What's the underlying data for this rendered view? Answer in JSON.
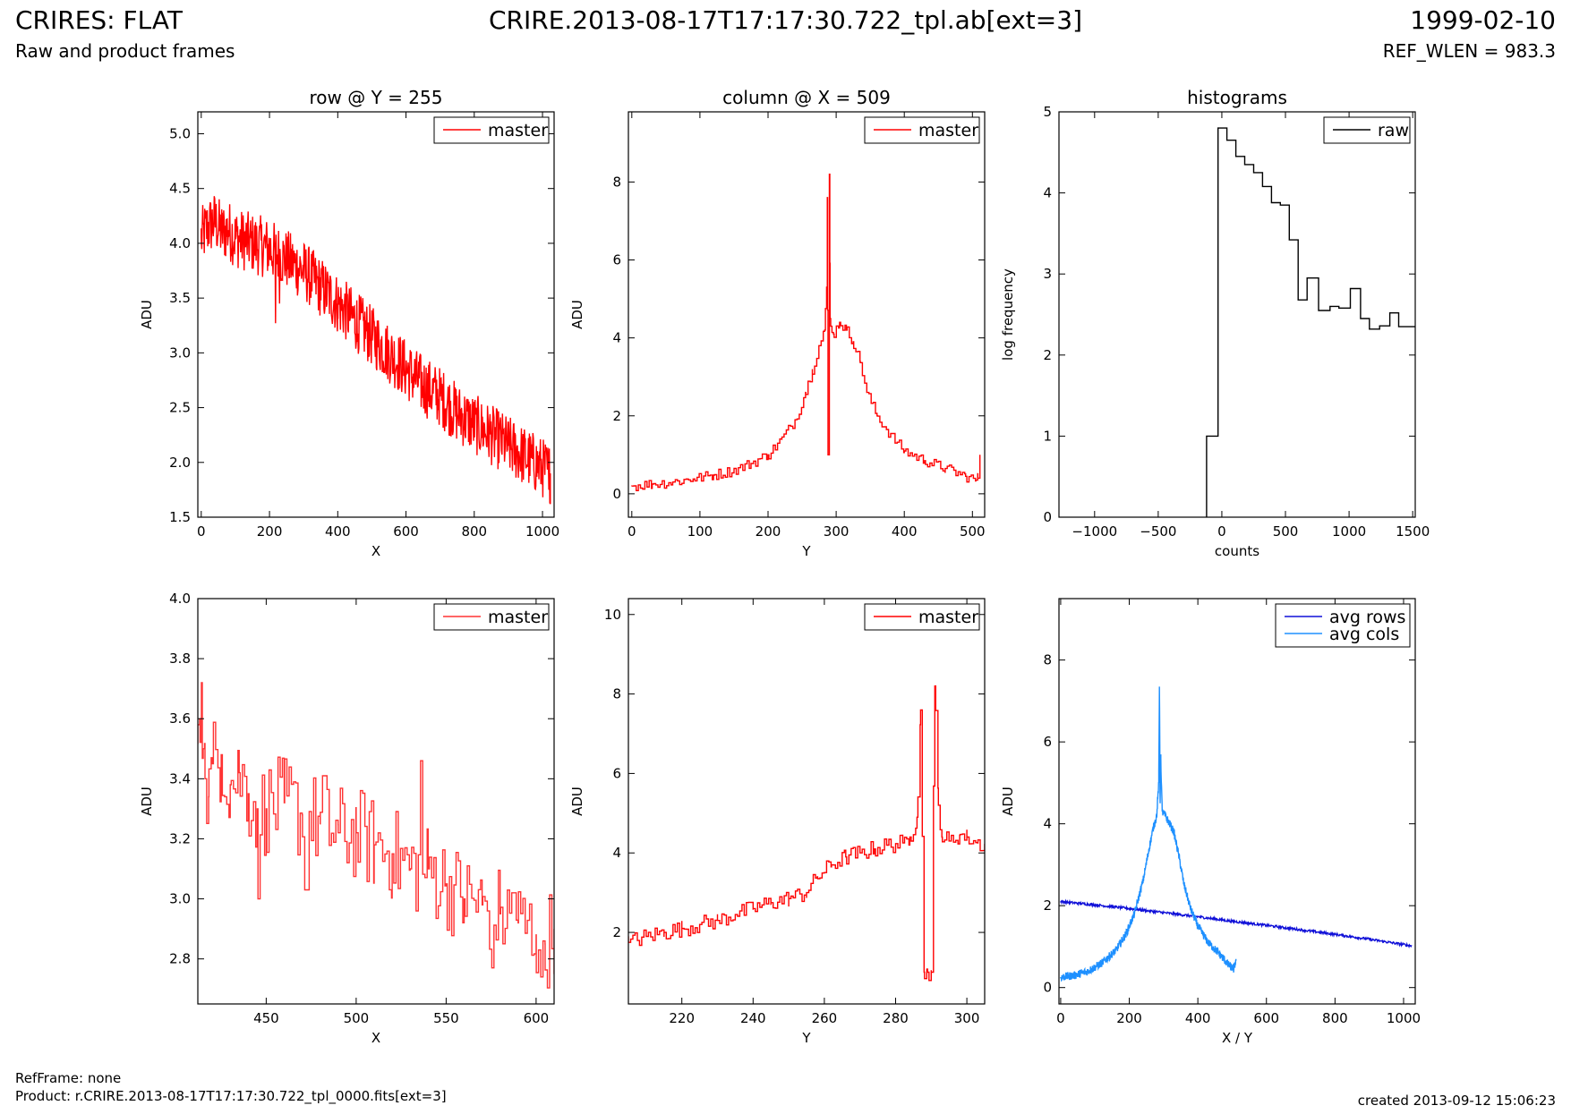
{
  "header": {
    "title_left": "CRIRES: FLAT",
    "subtitle_left": "Raw and product frames",
    "title_center": "CRIRE.2013-08-17T17:17:30.722_tpl.ab[ext=3]",
    "title_right": "1999-02-10",
    "subtitle_right": "REF_WLEN = 983.3"
  },
  "footer": {
    "ref_frame": "RefFrame: none",
    "product": "Product: r.CRIRE.2013-08-17T17:17:30.722_tpl_0000.fits[ext=3]",
    "created": "created 2013-09-12 15:06:23"
  },
  "colors": {
    "red": "#ff0000",
    "light_red": "#ff3333",
    "black": "#000000",
    "blue": "#1010d8",
    "light_blue": "#1e90ff"
  },
  "chart_data": [
    {
      "type": "line",
      "title": "row @ Y = 255",
      "xlabel": "X",
      "ylabel": "ADU",
      "xlim": [
        -10,
        1034
      ],
      "ylim": [
        1.5,
        5.2
      ],
      "xticks": [
        0,
        200,
        400,
        600,
        800,
        1000
      ],
      "yticks": [
        1.5,
        2.0,
        2.5,
        3.0,
        3.5,
        4.0,
        4.5,
        5.0
      ],
      "yformat": 1,
      "legend": "top-right",
      "series": [
        {
          "name": "master",
          "color": "#ff0000",
          "step": false,
          "x": [
            0,
            20,
            40,
            60,
            80,
            100,
            150,
            200,
            250,
            300,
            350,
            400,
            450,
            500,
            550,
            600,
            650,
            700,
            750,
            800,
            850,
            900,
            950,
            1000,
            1023
          ],
          "y": [
            4.05,
            4.15,
            4.2,
            4.1,
            4.12,
            4.05,
            4.0,
            3.95,
            3.85,
            3.75,
            3.6,
            3.45,
            3.3,
            3.15,
            3.0,
            2.85,
            2.7,
            2.6,
            2.45,
            2.35,
            2.25,
            2.15,
            2.05,
            1.95,
            1.9
          ],
          "noise": 0.28,
          "glitches": [
            [
              218,
              3.27
            ],
            [
              230,
              3.45
            ],
            [
              457,
              3.1
            ],
            [
              805,
              2.5
            ],
            [
              1019,
              1.75
            ]
          ]
        }
      ]
    },
    {
      "type": "line",
      "title": "column @ X = 509",
      "xlabel": "Y",
      "ylabel": "ADU",
      "xlim": [
        -5,
        518
      ],
      "ylim": [
        -0.6,
        9.8
      ],
      "xticks": [
        0,
        100,
        200,
        300,
        400,
        500
      ],
      "yticks": [
        0,
        2,
        4,
        6,
        8
      ],
      "yformat": 0,
      "legend": "top-right",
      "series": [
        {
          "name": "master",
          "color": "#ff0000",
          "step": true,
          "x": [
            0,
            30,
            60,
            90,
            120,
            150,
            175,
            200,
            220,
            240,
            255,
            265,
            275,
            283,
            286,
            287,
            288,
            289,
            290,
            291,
            292,
            296,
            305,
            315,
            325,
            335,
            345,
            360,
            380,
            400,
            430,
            460,
            490,
            505,
            508,
            511
          ],
          "y": [
            0.2,
            0.25,
            0.3,
            0.38,
            0.48,
            0.6,
            0.78,
            1.0,
            1.4,
            1.9,
            2.6,
            3.2,
            3.8,
            4.2,
            5.3,
            7.6,
            1.0,
            1.0,
            8.2,
            4.5,
            4.3,
            4.1,
            4.4,
            4.2,
            3.9,
            3.4,
            2.6,
            2.0,
            1.5,
            1.1,
            0.85,
            0.65,
            0.45,
            0.35,
            0.4,
            1.0
          ],
          "noise": 0.14,
          "glitches": []
        }
      ]
    },
    {
      "type": "line",
      "title": "histograms",
      "xlabel": "counts",
      "ylabel": "log frequency",
      "xlim": [
        -1280,
        1520
      ],
      "ylim": [
        0,
        5
      ],
      "xticks": [
        -1000,
        -500,
        0,
        500,
        1000,
        1500
      ],
      "yticks": [
        0,
        1,
        2,
        3,
        4,
        5
      ],
      "yformat": 0,
      "legend": "top-right",
      "series": [
        {
          "name": "raw",
          "color": "#000000",
          "step": true,
          "x": [
            -120,
            -120,
            -30,
            -30,
            40,
            40,
            110,
            110,
            180,
            180,
            250,
            250,
            320,
            320,
            390,
            390,
            460,
            460,
            530,
            530,
            600,
            600,
            670,
            670,
            760,
            760,
            850,
            850,
            920,
            920,
            1010,
            1010,
            1090,
            1090,
            1160,
            1160,
            1240,
            1240,
            1320,
            1320,
            1390,
            1390,
            1520
          ],
          "y": [
            0,
            1.0,
            1.0,
            4.8,
            4.8,
            4.65,
            4.65,
            4.45,
            4.45,
            4.35,
            4.35,
            4.25,
            4.25,
            4.08,
            4.08,
            3.88,
            3.88,
            3.85,
            3.85,
            3.42,
            3.42,
            2.68,
            2.68,
            2.95,
            2.95,
            2.55,
            2.55,
            2.6,
            2.6,
            2.58,
            2.58,
            2.82,
            2.82,
            2.45,
            2.45,
            2.32,
            2.32,
            2.36,
            2.36,
            2.52,
            2.52,
            2.35,
            2.35
          ],
          "noise": 0,
          "glitches": []
        }
      ]
    },
    {
      "type": "line",
      "title": "",
      "xlabel": "X",
      "ylabel": "ADU",
      "xlim": [
        412,
        610
      ],
      "ylim": [
        2.65,
        4.0
      ],
      "xticks": [
        450,
        500,
        550,
        600
      ],
      "yticks": [
        2.8,
        3.0,
        3.2,
        3.4,
        3.6,
        3.8,
        4.0
      ],
      "yformat": 1,
      "legend": "top-right",
      "series": [
        {
          "name": "master",
          "color": "#ff3333",
          "step": true,
          "x": [
            412,
            413,
            414,
            415,
            416,
            418,
            420,
            425,
            430,
            435,
            440,
            445,
            450,
            460,
            470,
            480,
            490,
            500,
            510,
            520,
            530,
            540,
            550,
            560,
            570,
            580,
            590,
            600,
            605,
            610
          ],
          "y": [
            3.58,
            3.6,
            3.72,
            3.5,
            3.4,
            3.34,
            3.45,
            3.48,
            3.38,
            3.42,
            3.35,
            3.3,
            3.3,
            3.32,
            3.28,
            3.25,
            3.22,
            3.22,
            3.18,
            3.15,
            3.1,
            3.1,
            3.05,
            3.0,
            2.98,
            2.95,
            2.92,
            2.88,
            2.85,
            2.9
          ],
          "noise": 0.16,
          "glitches": [
            [
              445,
              3.0
            ],
            [
              472,
              3.03
            ],
            [
              482,
              3.41
            ],
            [
              536,
              3.46
            ],
            [
              575,
              2.77
            ],
            [
              587,
              3.02
            ],
            [
              603,
              2.74
            ]
          ]
        }
      ]
    },
    {
      "type": "line",
      "title": "",
      "xlabel": "Y",
      "ylabel": "ADU",
      "xlim": [
        205,
        305
      ],
      "ylim": [
        0.2,
        10.4
      ],
      "xticks": [
        220,
        240,
        260,
        280,
        300
      ],
      "yticks": [
        2,
        4,
        6,
        8,
        10
      ],
      "yformat": 0,
      "legend": "top-right",
      "series": [
        {
          "name": "master",
          "color": "#ff0000",
          "step": true,
          "x": [
            205,
            210,
            215,
            220,
            225,
            230,
            235,
            240,
            245,
            250,
            255,
            258,
            262,
            266,
            270,
            274,
            278,
            282,
            284,
            286,
            287,
            288,
            289,
            290,
            291,
            292,
            293,
            295,
            298,
            300,
            303,
            305
          ],
          "y": [
            1.75,
            1.9,
            2.0,
            2.1,
            2.2,
            2.3,
            2.45,
            2.6,
            2.75,
            2.85,
            3.0,
            3.4,
            3.7,
            3.9,
            4.0,
            4.1,
            4.2,
            4.25,
            4.4,
            4.9,
            7.6,
            1.0,
            1.0,
            1.0,
            8.2,
            5.2,
            4.4,
            4.3,
            4.45,
            4.4,
            4.25,
            4.2
          ],
          "noise": 0.22,
          "glitches": []
        }
      ]
    },
    {
      "type": "line",
      "title": "",
      "xlabel": "X / Y",
      "ylabel": "ADU",
      "xlim": [
        -5,
        1034
      ],
      "ylim": [
        -0.4,
        9.5
      ],
      "xticks": [
        0,
        200,
        400,
        600,
        800,
        1000
      ],
      "yticks": [
        0,
        2,
        4,
        6,
        8
      ],
      "yformat": 0,
      "legend": "top-right",
      "series": [
        {
          "name": "avg rows",
          "color": "#1010d8",
          "step": false,
          "x": [
            0,
            100,
            200,
            300,
            400,
            500,
            600,
            700,
            800,
            900,
            1023
          ],
          "y": [
            2.1,
            2.02,
            1.93,
            1.83,
            1.73,
            1.62,
            1.52,
            1.41,
            1.3,
            1.18,
            1.02
          ],
          "noise": 0.03,
          "glitches": []
        },
        {
          "name": "avg cols",
          "color": "#1e90ff",
          "step": false,
          "x": [
            0,
            40,
            80,
            120,
            160,
            190,
            215,
            240,
            258,
            270,
            280,
            286,
            288,
            290,
            292,
            296,
            305,
            318,
            330,
            345,
            360,
            380,
            400,
            430,
            460,
            490,
            505,
            508,
            511
          ],
          "y": [
            0.25,
            0.3,
            0.4,
            0.6,
            0.9,
            1.3,
            1.8,
            2.6,
            3.4,
            3.9,
            4.2,
            5.0,
            7.35,
            4.5,
            5.6,
            4.3,
            4.2,
            4.0,
            3.8,
            3.2,
            2.5,
            1.9,
            1.5,
            1.1,
            0.85,
            0.55,
            0.45,
            0.55,
            0.7
          ],
          "noise": 0.1,
          "glitches": []
        }
      ]
    }
  ]
}
